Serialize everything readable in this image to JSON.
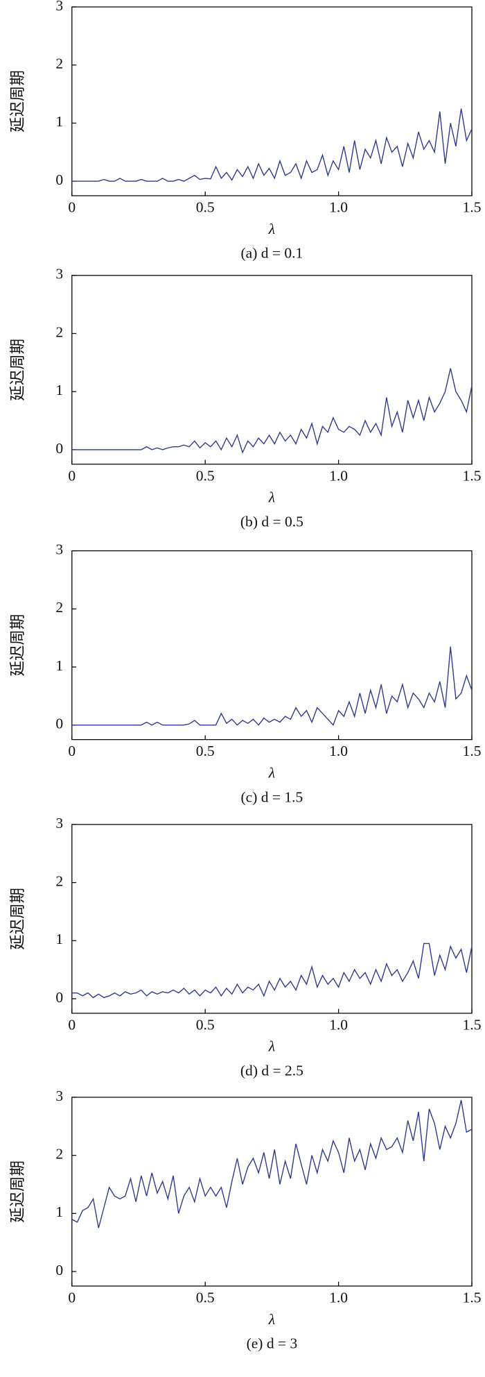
{
  "chart_data": [
    {
      "type": "line",
      "y_label": "延迟周期",
      "x_label": "λ",
      "caption": "(a) d = 0.1",
      "color": "#2e3a8c",
      "xlim": [
        0,
        1.5
      ],
      "ylim": [
        -0.25,
        3
      ],
      "xticks": [
        0,
        0.5,
        {
          "value": 1,
          "label": "1.0"
        },
        1.5
      ],
      "yticks": [
        0,
        1,
        2,
        3
      ],
      "x": [
        0,
        0.02,
        0.04,
        0.06,
        0.08,
        0.1,
        0.12,
        0.14,
        0.16,
        0.18,
        0.2,
        0.22,
        0.24,
        0.26,
        0.28,
        0.3,
        0.32,
        0.34,
        0.36,
        0.38,
        0.4,
        0.42,
        0.44,
        0.46,
        0.48,
        0.5,
        0.52,
        0.54,
        0.56,
        0.58,
        0.6,
        0.62,
        0.64,
        0.66,
        0.68,
        0.7,
        0.72,
        0.74,
        0.76,
        0.78,
        0.8,
        0.82,
        0.84,
        0.86,
        0.88,
        0.9,
        0.92,
        0.94,
        0.96,
        0.98,
        1,
        1.02,
        1.04,
        1.06,
        1.08,
        1.1,
        1.12,
        1.14,
        1.16,
        1.18,
        1.2,
        1.22,
        1.24,
        1.26,
        1.28,
        1.3,
        1.32,
        1.34,
        1.36,
        1.38,
        1.4,
        1.42,
        1.44,
        1.46,
        1.48,
        1.5
      ],
      "values": [
        0,
        0,
        0,
        0,
        0,
        0,
        0.03,
        0,
        0,
        0.05,
        0,
        0,
        0,
        0.03,
        0,
        0,
        0,
        0.05,
        0,
        0,
        0.03,
        0,
        0.05,
        0.1,
        0.03,
        0.05,
        0.04,
        0.25,
        0.05,
        0.15,
        0.02,
        0.2,
        0.08,
        0.25,
        0.05,
        0.3,
        0.1,
        0.22,
        0.05,
        0.35,
        0.1,
        0.15,
        0.3,
        0.05,
        0.35,
        0.15,
        0.2,
        0.45,
        0.1,
        0.35,
        0.2,
        0.6,
        0.15,
        0.7,
        0.2,
        0.55,
        0.4,
        0.7,
        0.3,
        0.75,
        0.5,
        0.6,
        0.25,
        0.65,
        0.4,
        0.85,
        0.55,
        0.7,
        0.5,
        1.2,
        0.3,
        1.0,
        0.6,
        1.25,
        0.7,
        0.9
      ]
    },
    {
      "type": "line",
      "y_label": "延迟周期",
      "x_label": "λ",
      "caption": "(b) d = 0.5",
      "color": "#2e3a8c",
      "xlim": [
        0,
        1.5
      ],
      "ylim": [
        -0.25,
        3
      ],
      "xticks": [
        0,
        0.5,
        {
          "value": 1,
          "label": "1.0"
        },
        1.5
      ],
      "yticks": [
        0,
        1,
        2,
        3
      ],
      "x": [
        0,
        0.02,
        0.04,
        0.06,
        0.08,
        0.1,
        0.12,
        0.14,
        0.16,
        0.18,
        0.2,
        0.22,
        0.24,
        0.26,
        0.28,
        0.3,
        0.32,
        0.34,
        0.36,
        0.38,
        0.4,
        0.42,
        0.44,
        0.46,
        0.48,
        0.5,
        0.52,
        0.54,
        0.56,
        0.58,
        0.6,
        0.62,
        0.64,
        0.66,
        0.68,
        0.7,
        0.72,
        0.74,
        0.76,
        0.78,
        0.8,
        0.82,
        0.84,
        0.86,
        0.88,
        0.9,
        0.92,
        0.94,
        0.96,
        0.98,
        1,
        1.02,
        1.04,
        1.06,
        1.08,
        1.1,
        1.12,
        1.14,
        1.16,
        1.18,
        1.2,
        1.22,
        1.24,
        1.26,
        1.28,
        1.3,
        1.32,
        1.34,
        1.36,
        1.38,
        1.4,
        1.42,
        1.44,
        1.46,
        1.48,
        1.5
      ],
      "values": [
        0,
        0,
        0,
        0,
        0,
        0,
        0,
        0,
        0,
        0,
        0,
        0,
        0,
        0,
        0.05,
        0,
        0.03,
        0,
        0.03,
        0.05,
        0.05,
        0.08,
        0.05,
        0.15,
        0.03,
        0.12,
        0.05,
        0.15,
        0,
        0.2,
        0.05,
        0.25,
        -0.05,
        0.15,
        0.05,
        0.2,
        0.1,
        0.25,
        0.1,
        0.3,
        0.15,
        0.25,
        0.1,
        0.35,
        0.2,
        0.45,
        0.1,
        0.4,
        0.3,
        0.55,
        0.35,
        0.3,
        0.4,
        0.35,
        0.25,
        0.5,
        0.3,
        0.45,
        0.25,
        0.9,
        0.4,
        0.65,
        0.3,
        0.85,
        0.55,
        0.85,
        0.5,
        0.9,
        0.65,
        0.8,
        1.0,
        1.4,
        1.0,
        0.85,
        0.65,
        1.1
      ]
    },
    {
      "type": "line",
      "y_label": "延迟周期",
      "x_label": "λ",
      "caption": "(c) d = 1.5",
      "color": "#2e3a8c",
      "xlim": [
        0,
        1.5
      ],
      "ylim": [
        -0.25,
        3
      ],
      "xticks": [
        0,
        0.5,
        {
          "value": 1,
          "label": "1.0"
        },
        1.5
      ],
      "yticks": [
        0,
        1,
        2,
        3
      ],
      "x": [
        0,
        0.02,
        0.04,
        0.06,
        0.08,
        0.1,
        0.12,
        0.14,
        0.16,
        0.18,
        0.2,
        0.22,
        0.24,
        0.26,
        0.28,
        0.3,
        0.32,
        0.34,
        0.36,
        0.38,
        0.4,
        0.42,
        0.44,
        0.46,
        0.48,
        0.5,
        0.52,
        0.54,
        0.56,
        0.58,
        0.6,
        0.62,
        0.64,
        0.66,
        0.68,
        0.7,
        0.72,
        0.74,
        0.76,
        0.78,
        0.8,
        0.82,
        0.84,
        0.86,
        0.88,
        0.9,
        0.92,
        0.94,
        0.96,
        0.98,
        1,
        1.02,
        1.04,
        1.06,
        1.08,
        1.1,
        1.12,
        1.14,
        1.16,
        1.18,
        1.2,
        1.22,
        1.24,
        1.26,
        1.28,
        1.3,
        1.32,
        1.34,
        1.36,
        1.38,
        1.4,
        1.42,
        1.44,
        1.46,
        1.48,
        1.5
      ],
      "values": [
        0,
        0,
        0,
        0,
        0,
        0,
        0,
        0,
        0,
        0,
        0,
        0,
        0,
        0,
        0.05,
        0,
        0.05,
        0,
        0,
        0,
        0,
        0,
        0.02,
        0.08,
        0,
        0,
        0,
        0,
        0.2,
        0.03,
        0.1,
        0,
        0.08,
        0.03,
        0.1,
        0,
        0.12,
        0.05,
        0.1,
        0.05,
        0.15,
        0.1,
        0.3,
        0.15,
        0.25,
        0.05,
        0.3,
        0.2,
        0.1,
        0,
        0.25,
        0.15,
        0.4,
        0.15,
        0.55,
        0.2,
        0.6,
        0.3,
        0.7,
        0.2,
        0.5,
        0.4,
        0.7,
        0.3,
        0.55,
        0.45,
        0.3,
        0.55,
        0.4,
        0.75,
        0.3,
        1.35,
        0.45,
        0.55,
        0.85,
        0.6
      ]
    },
    {
      "type": "line",
      "y_label": "延迟周期",
      "x_label": "λ",
      "caption": "(d) d = 2.5",
      "color": "#2e3a8c",
      "xlim": [
        0,
        1.5
      ],
      "ylim": [
        -0.25,
        3
      ],
      "xticks": [
        0,
        0.5,
        {
          "value": 1,
          "label": "1.0"
        },
        1.5
      ],
      "yticks": [
        0,
        1,
        2,
        3
      ],
      "x": [
        0,
        0.02,
        0.04,
        0.06,
        0.08,
        0.1,
        0.12,
        0.14,
        0.16,
        0.18,
        0.2,
        0.22,
        0.24,
        0.26,
        0.28,
        0.3,
        0.32,
        0.34,
        0.36,
        0.38,
        0.4,
        0.42,
        0.44,
        0.46,
        0.48,
        0.5,
        0.52,
        0.54,
        0.56,
        0.58,
        0.6,
        0.62,
        0.64,
        0.66,
        0.68,
        0.7,
        0.72,
        0.74,
        0.76,
        0.78,
        0.8,
        0.82,
        0.84,
        0.86,
        0.88,
        0.9,
        0.92,
        0.94,
        0.96,
        0.98,
        1,
        1.02,
        1.04,
        1.06,
        1.08,
        1.1,
        1.12,
        1.14,
        1.16,
        1.18,
        1.2,
        1.22,
        1.24,
        1.26,
        1.28,
        1.3,
        1.32,
        1.34,
        1.36,
        1.38,
        1.4,
        1.42,
        1.44,
        1.46,
        1.48,
        1.5
      ],
      "values": [
        0.1,
        0.1,
        0.05,
        0.1,
        0.02,
        0.08,
        0.02,
        0.05,
        0.1,
        0.05,
        0.12,
        0.08,
        0.1,
        0.15,
        0.05,
        0.12,
        0.08,
        0.12,
        0.1,
        0.15,
        0.1,
        0.18,
        0.08,
        0.15,
        0.05,
        0.15,
        0.1,
        0.2,
        0.05,
        0.18,
        0.08,
        0.25,
        0.1,
        0.2,
        0.15,
        0.25,
        0.05,
        0.3,
        0.15,
        0.35,
        0.2,
        0.3,
        0.15,
        0.4,
        0.25,
        0.55,
        0.2,
        0.4,
        0.25,
        0.35,
        0.2,
        0.45,
        0.3,
        0.5,
        0.35,
        0.45,
        0.25,
        0.5,
        0.3,
        0.6,
        0.4,
        0.5,
        0.3,
        0.45,
        0.65,
        0.35,
        0.95,
        0.95,
        0.4,
        0.75,
        0.5,
        0.9,
        0.7,
        0.85,
        0.45,
        0.9
      ]
    },
    {
      "type": "line",
      "y_label": "延迟周期",
      "x_label": "λ",
      "caption": "(e) d = 3",
      "color": "#2e3a8c",
      "xlim": [
        0,
        1.5
      ],
      "ylim": [
        -0.25,
        3
      ],
      "xticks": [
        0,
        0.5,
        {
          "value": 1,
          "label": "1.0"
        },
        1.5
      ],
      "yticks": [
        0,
        1,
        2,
        3
      ],
      "x": [
        0,
        0.02,
        0.04,
        0.06,
        0.08,
        0.1,
        0.12,
        0.14,
        0.16,
        0.18,
        0.2,
        0.22,
        0.24,
        0.26,
        0.28,
        0.3,
        0.32,
        0.34,
        0.36,
        0.38,
        0.4,
        0.42,
        0.44,
        0.46,
        0.48,
        0.5,
        0.52,
        0.54,
        0.56,
        0.58,
        0.6,
        0.62,
        0.64,
        0.66,
        0.68,
        0.7,
        0.72,
        0.74,
        0.76,
        0.78,
        0.8,
        0.82,
        0.84,
        0.86,
        0.88,
        0.9,
        0.92,
        0.94,
        0.96,
        0.98,
        1,
        1.02,
        1.04,
        1.06,
        1.08,
        1.1,
        1.12,
        1.14,
        1.16,
        1.18,
        1.2,
        1.22,
        1.24,
        1.26,
        1.28,
        1.3,
        1.32,
        1.34,
        1.36,
        1.38,
        1.4,
        1.42,
        1.44,
        1.46,
        1.48,
        1.5
      ],
      "values": [
        0.9,
        0.85,
        1.05,
        1.1,
        1.25,
        0.75,
        1.1,
        1.45,
        1.3,
        1.25,
        1.3,
        1.6,
        1.2,
        1.65,
        1.3,
        1.7,
        1.35,
        1.55,
        1.25,
        1.65,
        1.0,
        1.3,
        1.45,
        1.2,
        1.6,
        1.3,
        1.45,
        1.3,
        1.45,
        1.1,
        1.55,
        1.95,
        1.5,
        1.8,
        1.95,
        1.7,
        2.05,
        1.6,
        2.1,
        1.5,
        1.9,
        1.6,
        2.2,
        1.85,
        1.5,
        2.0,
        1.7,
        2.1,
        1.9,
        2.25,
        2.05,
        1.7,
        2.3,
        1.9,
        2.1,
        1.75,
        2.2,
        1.95,
        2.3,
        2.1,
        2.15,
        2.3,
        2.05,
        2.6,
        2.25,
        2.75,
        1.9,
        2.8,
        2.55,
        2.1,
        2.5,
        2.3,
        2.55,
        2.95,
        2.4,
        2.45
      ]
    }
  ]
}
